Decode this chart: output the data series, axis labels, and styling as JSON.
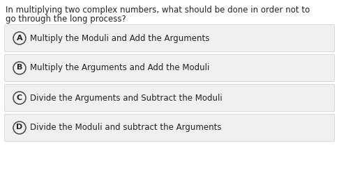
{
  "question_line1": "In multiplying two complex numbers, what should be done in order not to",
  "question_line2": "go through the long process?",
  "options": [
    {
      "label": "A",
      "text": "Multiply the Moduli and Add the Arguments"
    },
    {
      "label": "B",
      "text": "Multiply the Arguments and Add the Moduli"
    },
    {
      "label": "C",
      "text": "Divide the Arguments and Subtract the Moduli"
    },
    {
      "label": "D",
      "text": "Divide the Moduli and subtract the Arguments"
    }
  ],
  "bg_color": "#ffffff",
  "option_bg_color": "#f0f0f0",
  "option_border_color": "#cccccc",
  "text_color": "#222222",
  "circle_edge_color": "#444444",
  "question_fontsize": 8.5,
  "option_fontsize": 8.5,
  "label_fontsize": 8.0
}
